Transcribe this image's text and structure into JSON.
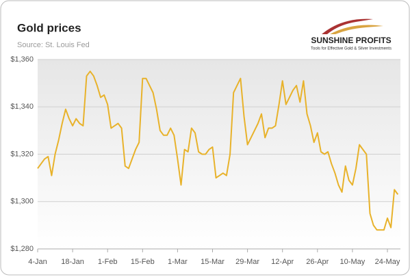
{
  "chart_data": {
    "type": "line",
    "title": "Gold prices",
    "subtitle": "Source: St. Louis Fed",
    "logo": {
      "name": "SUNSHINE PROFITS",
      "tagline": "Tools for Effective Gold & Silver Investments"
    },
    "color": "#e8b22a",
    "grid": true,
    "categories": [
      "4-Jan",
      null,
      null,
      null,
      null,
      null,
      null,
      null,
      null,
      null,
      "18-Jan",
      null,
      null,
      null,
      null,
      null,
      null,
      null,
      null,
      null,
      "1-Feb",
      null,
      null,
      null,
      null,
      null,
      null,
      null,
      null,
      null,
      "15-Feb",
      null,
      null,
      null,
      null,
      null,
      null,
      null,
      null,
      null,
      "1-Mar",
      null,
      null,
      null,
      null,
      null,
      null,
      null,
      null,
      null,
      "15-Mar",
      null,
      null,
      null,
      null,
      null,
      null,
      null,
      null,
      null,
      "29-Mar",
      null,
      null,
      null,
      null,
      null,
      null,
      null,
      null,
      null,
      "12-Apr",
      null,
      null,
      null,
      null,
      null,
      null,
      null,
      null,
      null,
      "26-Apr",
      null,
      null,
      null,
      null,
      null,
      null,
      null,
      null,
      null,
      "10-May",
      null,
      null,
      null,
      null,
      null,
      null,
      null,
      null,
      null,
      "24-May",
      null,
      null,
      null
    ],
    "values": [
      1314,
      1316,
      1318,
      1319,
      1311,
      1320,
      1326,
      1333,
      1339,
      1335,
      1332,
      1335,
      1333,
      1332,
      1353,
      1355,
      1353,
      1349,
      1344,
      1345,
      1341,
      1331,
      1332,
      1333,
      1331,
      1315,
      1314,
      1318,
      1322,
      1325,
      1352,
      1352,
      1349,
      1346,
      1339,
      1330,
      1328,
      1328,
      1331,
      1328,
      1318,
      1307,
      1322,
      1321,
      1331,
      1329,
      1321,
      1320,
      1320,
      1322,
      1323,
      1310,
      1311,
      1312,
      1311,
      1320,
      1346,
      1349,
      1352,
      1336,
      1324,
      1327,
      1330,
      1333,
      1337,
      1327,
      1331,
      1331,
      1332,
      1341,
      1351,
      1341,
      1344,
      1347,
      1349,
      1342,
      1351,
      1337,
      1332,
      1325,
      1329,
      1321,
      1320,
      1321,
      1316,
      1312,
      1307,
      1304,
      1315,
      1309,
      1307,
      1314,
      1324,
      1322,
      1320,
      1295,
      1290,
      1288,
      1288,
      1288,
      1293,
      1289,
      1305,
      1303
    ],
    "ylim": [
      1280,
      1360
    ],
    "yticks": [
      {
        "value": 1280,
        "label": "$1,280"
      },
      {
        "value": 1300,
        "label": "$1,300"
      },
      {
        "value": 1320,
        "label": "$1,320"
      },
      {
        "value": 1340,
        "label": "$1,340"
      },
      {
        "value": 1360,
        "label": "$1,360"
      }
    ]
  }
}
